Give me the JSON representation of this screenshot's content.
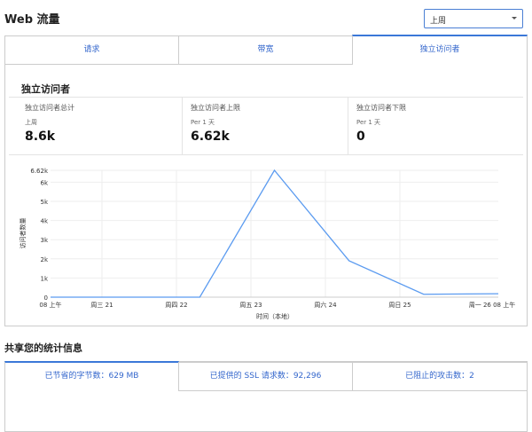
{
  "header": {
    "title": "Web 流量",
    "range_select": "上周"
  },
  "tabs": [
    {
      "label": "请求"
    },
    {
      "label": "带宽"
    },
    {
      "label": "独立访问者",
      "active": true
    }
  ],
  "section": {
    "title": "独立访问者",
    "stats": [
      {
        "label": "独立访问者总计",
        "sub": "上周",
        "value": "8.6k"
      },
      {
        "label": "独立访问者上限",
        "sub": "Per 1 天",
        "value": "6.62k"
      },
      {
        "label": "独立访问者下限",
        "sub": "Per 1 天",
        "value": "0"
      }
    ]
  },
  "chart_data": {
    "type": "line",
    "xlabel": "时间（本地）",
    "ylabel": "访问者数量",
    "ylim": [
      0,
      6620
    ],
    "y_ticks": [
      "0",
      "1k",
      "2k",
      "3k",
      "4k",
      "5k",
      "6k",
      "6.62k"
    ],
    "x_ticks": [
      "08 上午",
      "周三 21",
      "周四 22",
      "周五 23",
      "周六 24",
      "周日 25",
      "周一 26 08 上午"
    ],
    "x": [
      "20 08:00",
      "21 08:00",
      "22 08:00",
      "23 08:00",
      "24 08:00",
      "25 08:00",
      "26 08:00"
    ],
    "values": [
      0,
      0,
      0,
      6620,
      1900,
      150,
      180
    ],
    "grid": true,
    "color": "#5b9bf0"
  },
  "share": {
    "title": "共享您的统计信息",
    "tabs": [
      {
        "label": "已节省的字节数：629 MB",
        "active": true
      },
      {
        "label": "已提供的 SSL 请求数：92,296"
      },
      {
        "label": "已阻止的攻击数：2"
      }
    ]
  }
}
